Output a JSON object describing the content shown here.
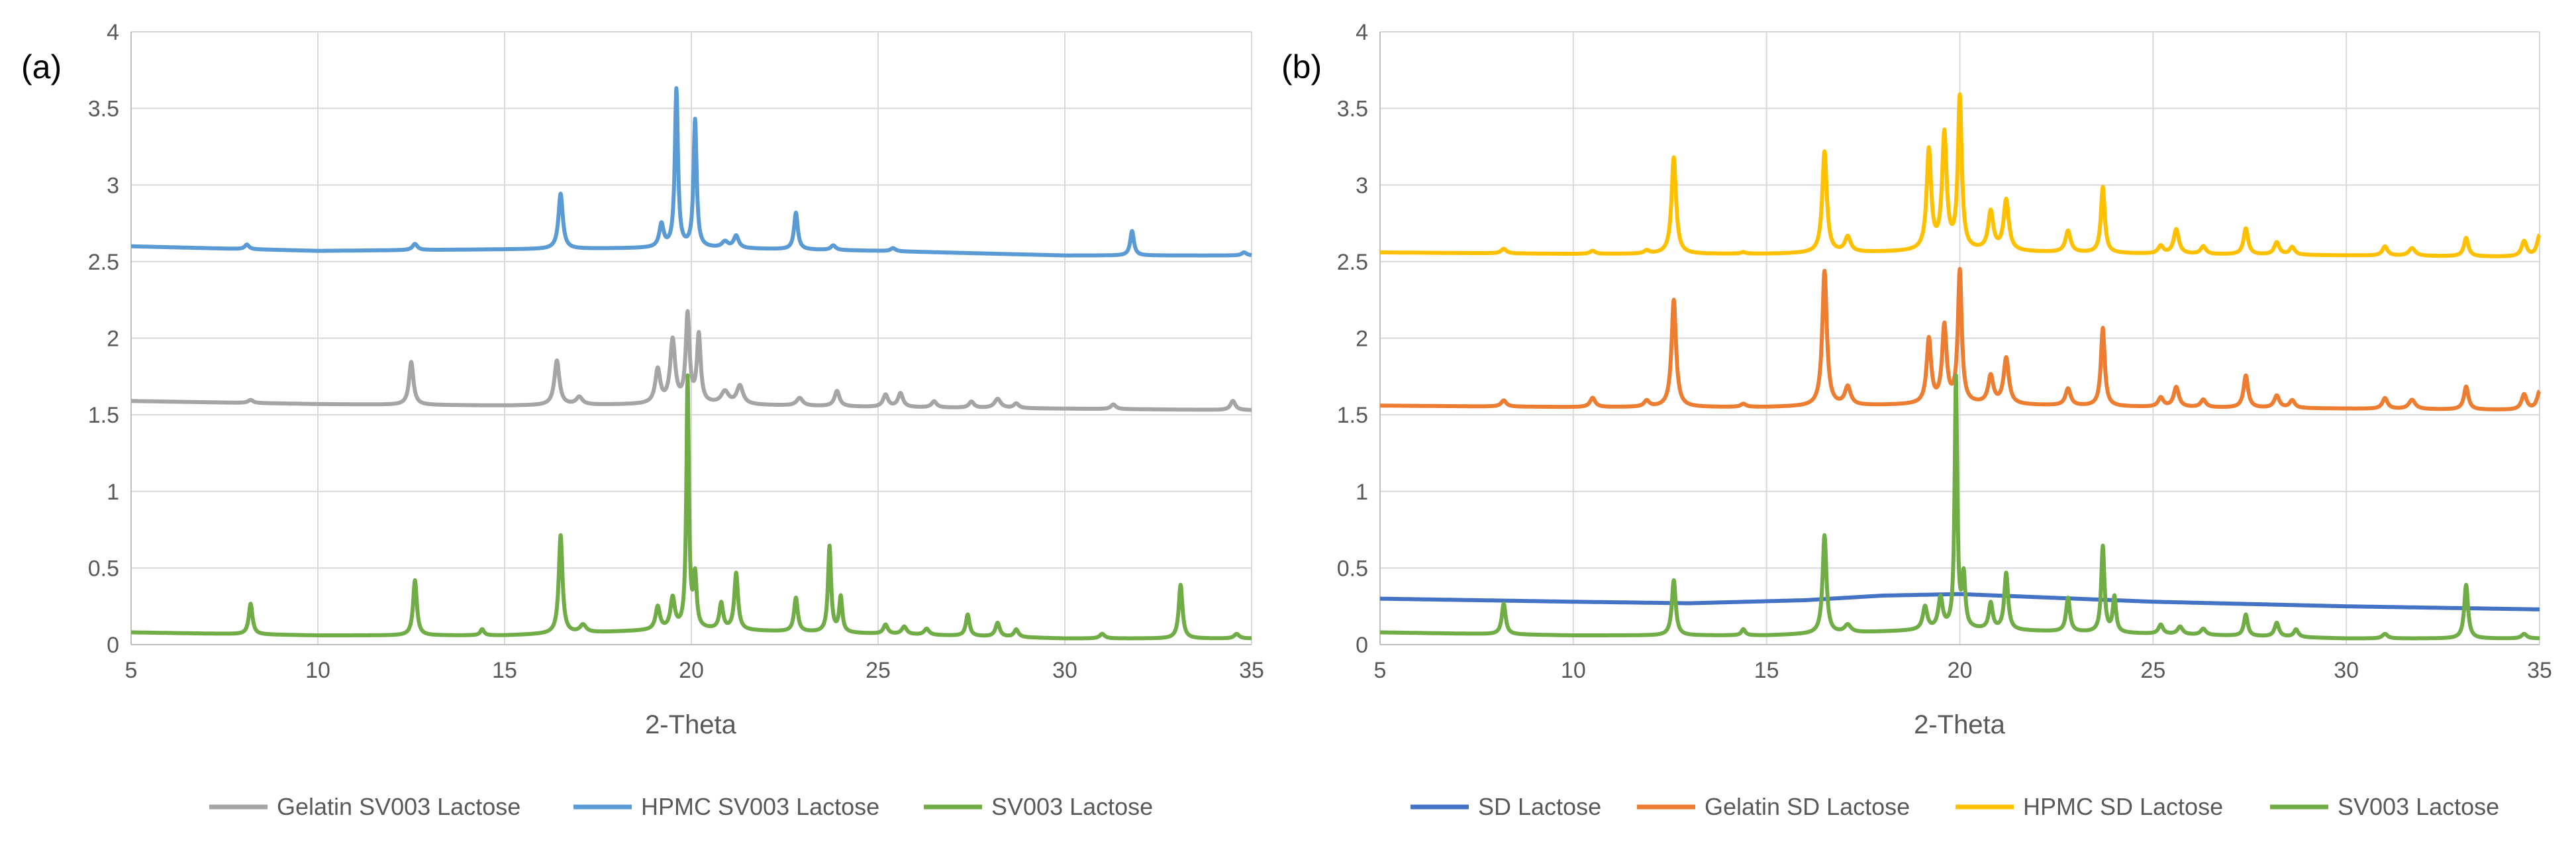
{
  "chart_data": [
    {
      "type": "line",
      "panel_label": "(a)",
      "xlabel": "2-Theta",
      "ylabel": "",
      "xlim": [
        5,
        35
      ],
      "ylim": [
        0,
        4
      ],
      "x_ticks": [
        5,
        10,
        15,
        20,
        25,
        30,
        35
      ],
      "y_ticks": [
        0,
        0.5,
        1,
        1.5,
        2,
        2.5,
        3,
        3.5,
        4
      ],
      "grid": true,
      "legend_position": "bottom",
      "series": [
        {
          "name": "Gelatin SV003 Lactose",
          "color": "#a5a5a5",
          "baseline": [
            [
              5,
              1.59
            ],
            [
              10,
              1.57
            ],
            [
              15,
              1.56
            ],
            [
              20,
              1.57
            ],
            [
              25,
              1.55
            ],
            [
              30,
              1.54
            ],
            [
              35,
              1.53
            ]
          ],
          "peaks": [
            [
              8.2,
              0.02,
              0.08
            ],
            [
              12.5,
              0.28,
              0.07
            ],
            [
              16.4,
              0.29,
              0.08
            ],
            [
              17.0,
              0.05,
              0.1
            ],
            [
              19.1,
              0.22,
              0.08
            ],
            [
              19.5,
              0.41,
              0.08
            ],
            [
              19.9,
              0.57,
              0.06
            ],
            [
              20.2,
              0.44,
              0.06
            ],
            [
              20.9,
              0.08,
              0.12
            ],
            [
              21.3,
              0.12,
              0.1
            ],
            [
              22.9,
              0.05,
              0.1
            ],
            [
              23.9,
              0.1,
              0.08
            ],
            [
              25.2,
              0.08,
              0.08
            ],
            [
              25.6,
              0.09,
              0.08
            ],
            [
              26.5,
              0.04,
              0.08
            ],
            [
              27.5,
              0.04,
              0.08
            ],
            [
              28.2,
              0.06,
              0.1
            ],
            [
              28.7,
              0.03,
              0.08
            ],
            [
              31.3,
              0.03,
              0.08
            ],
            [
              34.5,
              0.06,
              0.08
            ]
          ]
        },
        {
          "name": "HPMC SV003 Lactose",
          "color": "#5b9bd5",
          "baseline": [
            [
              5,
              2.6
            ],
            [
              10,
              2.57
            ],
            [
              15,
              2.58
            ],
            [
              20,
              2.59
            ],
            [
              25,
              2.57
            ],
            [
              30,
              2.54
            ],
            [
              35,
              2.54
            ]
          ],
          "peaks": [
            [
              8.1,
              0.03,
              0.07
            ],
            [
              12.6,
              0.04,
              0.08
            ],
            [
              16.5,
              0.36,
              0.07
            ],
            [
              19.2,
              0.15,
              0.07
            ],
            [
              19.6,
              1.03,
              0.05
            ],
            [
              20.1,
              0.83,
              0.05
            ],
            [
              20.9,
              0.04,
              0.1
            ],
            [
              21.2,
              0.08,
              0.08
            ],
            [
              22.8,
              0.24,
              0.06
            ],
            [
              23.8,
              0.03,
              0.08
            ],
            [
              25.4,
              0.02,
              0.08
            ],
            [
              31.8,
              0.16,
              0.06
            ],
            [
              34.8,
              0.02,
              0.08
            ]
          ]
        },
        {
          "name": "SV003 Lactose",
          "color": "#70ad47",
          "baseline": [
            [
              5,
              0.08
            ],
            [
              10,
              0.06
            ],
            [
              15,
              0.06
            ],
            [
              20,
              0.1
            ],
            [
              25,
              0.07
            ],
            [
              30,
              0.04
            ],
            [
              35,
              0.04
            ]
          ],
          "peaks": [
            [
              8.2,
              0.2,
              0.06
            ],
            [
              12.6,
              0.36,
              0.06
            ],
            [
              14.4,
              0.04,
              0.06
            ],
            [
              16.5,
              0.64,
              0.06
            ],
            [
              17.1,
              0.05,
              0.1
            ],
            [
              19.1,
              0.15,
              0.07
            ],
            [
              19.5,
              0.2,
              0.07
            ],
            [
              19.9,
              1.63,
              0.04
            ],
            [
              20.1,
              0.33,
              0.05
            ],
            [
              20.8,
              0.17,
              0.06
            ],
            [
              21.2,
              0.37,
              0.06
            ],
            [
              22.8,
              0.22,
              0.06
            ],
            [
              23.7,
              0.56,
              0.05
            ],
            [
              24.0,
              0.23,
              0.05
            ],
            [
              25.2,
              0.06,
              0.07
            ],
            [
              25.7,
              0.05,
              0.08
            ],
            [
              26.3,
              0.04,
              0.08
            ],
            [
              27.4,
              0.14,
              0.06
            ],
            [
              28.2,
              0.09,
              0.07
            ],
            [
              28.7,
              0.05,
              0.07
            ],
            [
              31.0,
              0.03,
              0.08
            ],
            [
              33.1,
              0.35,
              0.06
            ],
            [
              34.6,
              0.03,
              0.08
            ]
          ]
        }
      ]
    },
    {
      "type": "line",
      "panel_label": "(b)",
      "xlabel": "2-Theta",
      "ylabel": "",
      "xlim": [
        5,
        35
      ],
      "ylim": [
        0,
        4
      ],
      "x_ticks": [
        5,
        10,
        15,
        20,
        25,
        30,
        35
      ],
      "y_ticks": [
        0,
        0.5,
        1,
        1.5,
        2,
        2.5,
        3,
        3.5,
        4
      ],
      "grid": true,
      "legend_position": "bottom",
      "series": [
        {
          "name": "SD Lactose",
          "color": "#4472c4",
          "baseline": [
            [
              5,
              0.3
            ],
            [
              10,
              0.28
            ],
            [
              13,
              0.27
            ],
            [
              16,
              0.29
            ],
            [
              18,
              0.32
            ],
            [
              20,
              0.33
            ],
            [
              22,
              0.31
            ],
            [
              25,
              0.28
            ],
            [
              30,
              0.25
            ],
            [
              35,
              0.23
            ]
          ],
          "peaks": []
        },
        {
          "name": "Gelatin SD Lactose",
          "color": "#ed7d31",
          "baseline": [
            [
              5,
              1.56
            ],
            [
              10,
              1.55
            ],
            [
              15,
              1.55
            ],
            [
              20,
              1.57
            ],
            [
              25,
              1.55
            ],
            [
              30,
              1.54
            ],
            [
              35,
              1.53
            ]
          ],
          "peaks": [
            [
              8.2,
              0.04,
              0.08
            ],
            [
              10.5,
              0.06,
              0.08
            ],
            [
              11.9,
              0.04,
              0.08
            ],
            [
              12.6,
              0.7,
              0.07
            ],
            [
              14.4,
              0.02,
              0.08
            ],
            [
              16.5,
              0.88,
              0.07
            ],
            [
              17.1,
              0.12,
              0.09
            ],
            [
              19.2,
              0.42,
              0.07
            ],
            [
              19.6,
              0.5,
              0.07
            ],
            [
              20.0,
              0.86,
              0.06
            ],
            [
              20.8,
              0.18,
              0.08
            ],
            [
              21.2,
              0.3,
              0.08
            ],
            [
              22.8,
              0.11,
              0.08
            ],
            [
              23.7,
              0.51,
              0.06
            ],
            [
              25.2,
              0.06,
              0.08
            ],
            [
              25.6,
              0.13,
              0.08
            ],
            [
              26.3,
              0.05,
              0.08
            ],
            [
              27.4,
              0.21,
              0.07
            ],
            [
              28.2,
              0.08,
              0.08
            ],
            [
              28.6,
              0.05,
              0.08
            ],
            [
              31.0,
              0.07,
              0.08
            ],
            [
              31.7,
              0.06,
              0.1
            ],
            [
              33.1,
              0.15,
              0.07
            ],
            [
              34.6,
              0.1,
              0.08
            ],
            [
              35.0,
              0.12,
              0.08
            ]
          ]
        },
        {
          "name": "HPMC SD Lactose",
          "color": "#ffc000",
          "baseline": [
            [
              5,
              2.56
            ],
            [
              10,
              2.55
            ],
            [
              15,
              2.55
            ],
            [
              20,
              2.57
            ],
            [
              25,
              2.55
            ],
            [
              30,
              2.54
            ],
            [
              35,
              2.53
            ]
          ],
          "peaks": [
            [
              8.2,
              0.03,
              0.08
            ],
            [
              10.5,
              0.02,
              0.08
            ],
            [
              11.9,
              0.02,
              0.08
            ],
            [
              12.6,
              0.63,
              0.07
            ],
            [
              14.4,
              0.01,
              0.08
            ],
            [
              16.5,
              0.66,
              0.07
            ],
            [
              17.1,
              0.1,
              0.09
            ],
            [
              19.2,
              0.65,
              0.07
            ],
            [
              19.6,
              0.75,
              0.07
            ],
            [
              20.0,
              0.99,
              0.06
            ],
            [
              20.8,
              0.25,
              0.08
            ],
            [
              21.2,
              0.33,
              0.08
            ],
            [
              22.8,
              0.14,
              0.08
            ],
            [
              23.7,
              0.43,
              0.06
            ],
            [
              25.2,
              0.05,
              0.08
            ],
            [
              25.6,
              0.16,
              0.08
            ],
            [
              26.3,
              0.05,
              0.08
            ],
            [
              27.4,
              0.17,
              0.07
            ],
            [
              28.2,
              0.08,
              0.08
            ],
            [
              28.6,
              0.05,
              0.08
            ],
            [
              31.0,
              0.06,
              0.08
            ],
            [
              31.7,
              0.05,
              0.1
            ],
            [
              33.1,
              0.12,
              0.07
            ],
            [
              34.6,
              0.1,
              0.08
            ],
            [
              35.0,
              0.14,
              0.08
            ]
          ]
        },
        {
          "name": "SV003 Lactose",
          "color": "#70ad47",
          "baseline": [
            [
              5,
              0.08
            ],
            [
              10,
              0.06
            ],
            [
              15,
              0.06
            ],
            [
              20,
              0.1
            ],
            [
              25,
              0.07
            ],
            [
              30,
              0.04
            ],
            [
              35,
              0.04
            ]
          ],
          "peaks": [
            [
              8.2,
              0.2,
              0.06
            ],
            [
              12.6,
              0.36,
              0.06
            ],
            [
              14.4,
              0.04,
              0.06
            ],
            [
              16.5,
              0.64,
              0.06
            ],
            [
              17.1,
              0.05,
              0.1
            ],
            [
              19.1,
              0.15,
              0.07
            ],
            [
              19.5,
              0.2,
              0.07
            ],
            [
              19.9,
              1.63,
              0.04
            ],
            [
              20.1,
              0.33,
              0.05
            ],
            [
              20.8,
              0.17,
              0.06
            ],
            [
              21.2,
              0.37,
              0.06
            ],
            [
              22.8,
              0.22,
              0.06
            ],
            [
              23.7,
              0.56,
              0.05
            ],
            [
              24.0,
              0.23,
              0.05
            ],
            [
              25.2,
              0.06,
              0.07
            ],
            [
              25.7,
              0.05,
              0.08
            ],
            [
              26.3,
              0.04,
              0.08
            ],
            [
              27.4,
              0.14,
              0.06
            ],
            [
              28.2,
              0.09,
              0.07
            ],
            [
              28.7,
              0.05,
              0.07
            ],
            [
              31.0,
              0.03,
              0.08
            ],
            [
              33.1,
              0.35,
              0.06
            ],
            [
              34.6,
              0.03,
              0.08
            ]
          ]
        }
      ]
    }
  ]
}
